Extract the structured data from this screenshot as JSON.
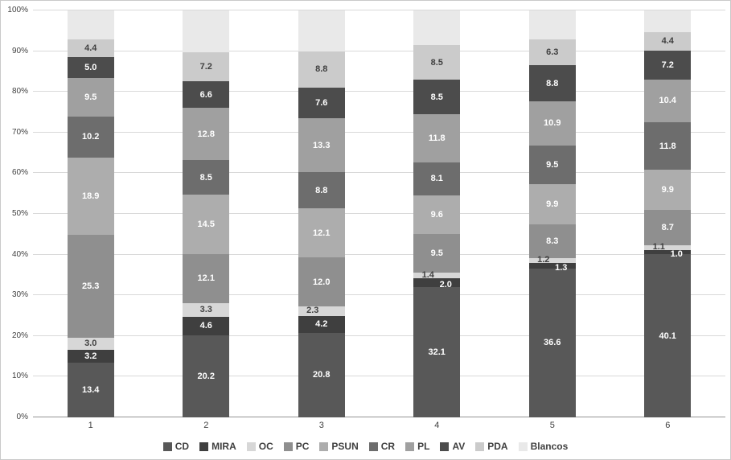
{
  "chart_data": {
    "type": "bar",
    "stacked": true,
    "percent": true,
    "title": "",
    "xlabel": "",
    "ylabel": "",
    "ylim": [
      0,
      100
    ],
    "grid": true,
    "legend_position": "bottom",
    "categories": [
      "1",
      "2",
      "3",
      "4",
      "5",
      "6"
    ],
    "y_ticks": [
      "0%",
      "10%",
      "20%",
      "30%",
      "40%",
      "50%",
      "60%",
      "70%",
      "80%",
      "90%",
      "100%"
    ],
    "series": [
      {
        "name": "CD",
        "color": "#585858",
        "label_color": "#ffffff",
        "values": [
          13.4,
          20.2,
          20.8,
          32.1,
          36.6,
          40.1
        ]
      },
      {
        "name": "MIRA",
        "color": "#3f3f3f",
        "label_color": "#ffffff",
        "values": [
          3.2,
          4.6,
          4.2,
          2.0,
          1.3,
          1.0
        ]
      },
      {
        "name": "OC",
        "color": "#d7d7d7",
        "label_color": "#404040",
        "values": [
          3.0,
          3.3,
          2.3,
          1.4,
          1.2,
          1.1
        ]
      },
      {
        "name": "PC",
        "color": "#8f8f8f",
        "label_color": "#ffffff",
        "values": [
          25.3,
          12.1,
          12.0,
          9.5,
          8.3,
          8.7
        ]
      },
      {
        "name": "PSUN",
        "color": "#adadad",
        "label_color": "#ffffff",
        "values": [
          18.9,
          14.5,
          12.1,
          9.6,
          9.9,
          9.9
        ]
      },
      {
        "name": "CR",
        "color": "#6d6d6d",
        "label_color": "#ffffff",
        "values": [
          10.2,
          8.5,
          8.8,
          8.1,
          9.5,
          11.8
        ]
      },
      {
        "name": "PL",
        "color": "#a0a0a0",
        "label_color": "#ffffff",
        "values": [
          9.5,
          12.8,
          13.3,
          11.8,
          10.9,
          10.4
        ]
      },
      {
        "name": "AV",
        "color": "#4c4c4c",
        "label_color": "#ffffff",
        "values": [
          5.0,
          6.6,
          7.6,
          8.5,
          8.8,
          7.2
        ]
      },
      {
        "name": "PDA",
        "color": "#cbcbcb",
        "label_color": "#404040",
        "values": [
          4.4,
          7.2,
          8.8,
          8.5,
          6.3,
          4.4
        ]
      },
      {
        "name": "Blancos",
        "color": "#e9e9e9",
        "label_color": "#404040",
        "show_labels": false,
        "values": [
          7.1,
          10.2,
          10.1,
          8.5,
          7.2,
          5.4
        ]
      }
    ]
  }
}
